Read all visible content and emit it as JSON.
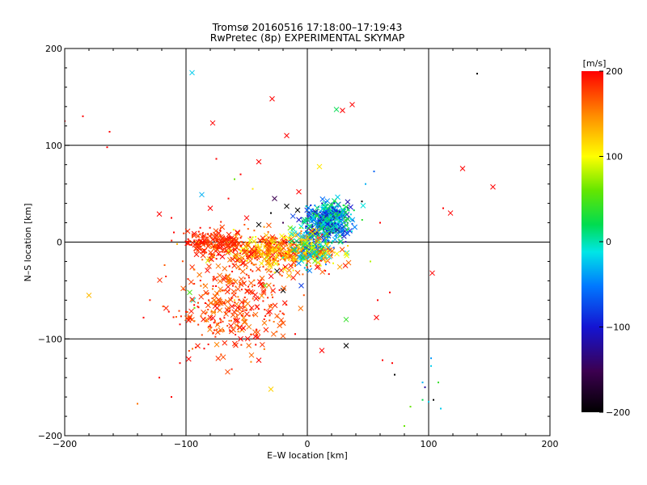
{
  "chart_data": {
    "type": "scatter",
    "title": "Tromsø 20160516 17:18:00–17:19:43",
    "subtitle": "RwPretec (8p) EXPERIMENTAL SKYMAP",
    "xlabel": "E–W location [km]",
    "ylabel": "N–S location [km]",
    "xlim": [
      -200,
      200
    ],
    "ylim": [
      -200,
      200
    ],
    "x_ticks": [
      "-200",
      "-100",
      "0",
      "100",
      "200"
    ],
    "y_ticks": [
      "-200",
      "-100",
      "0",
      "100",
      "200"
    ],
    "grid": true,
    "colorbar": {
      "label": "[m/s]",
      "range": [
        -200,
        200
      ],
      "ticks": [
        "200",
        "100",
        "0",
        "-100",
        "-200"
      ],
      "colormap": "rainbow: black at -200, purple/blue at -100, cyan/green at 0, yellow at 100, red at 200"
    },
    "cluster_summary": [
      {
        "region": "NE of origin, x 0 to 45 km, y -10 to 45 km",
        "dominant_velocity": [
          -120,
          40
        ],
        "colors": "blue, cyan, green"
      },
      {
        "region": "W of origin, x -95 to 10 km, y -30 to 10 km",
        "dominant_velocity": [
          120,
          200
        ],
        "colors": "red, orange, yellow"
      },
      {
        "region": "SW of origin, x -110 to -20 km, y -110 to -40 km",
        "dominant_velocity": [
          150,
          200
        ],
        "colors": "red"
      }
    ],
    "series": [
      {
        "marker": "x",
        "points": [
          [
            -95,
            175,
            -20
          ],
          [
            -29,
            148,
            200
          ],
          [
            -78,
            123,
            200
          ],
          [
            -17,
            110,
            200
          ],
          [
            24,
            137,
            20
          ],
          [
            29,
            136,
            200
          ],
          [
            37,
            142,
            200
          ],
          [
            -40,
            83,
            200
          ],
          [
            -27,
            45,
            -150
          ],
          [
            -87,
            49,
            -30
          ],
          [
            -122,
            29,
            200
          ],
          [
            118,
            30,
            200
          ],
          [
            128,
            76,
            200
          ],
          [
            153,
            57,
            200
          ],
          [
            -180,
            -55,
            130
          ],
          [
            -97,
            -52,
            50
          ],
          [
            -94,
            -60,
            0
          ],
          [
            -40,
            -122,
            200
          ],
          [
            -30,
            -152,
            120
          ],
          [
            32,
            -107,
            -200
          ],
          [
            32,
            -80,
            40
          ],
          [
            57,
            -78,
            200
          ],
          [
            103,
            -32,
            200
          ],
          [
            12,
            -112,
            200
          ],
          [
            -8,
            33,
            -200
          ],
          [
            -7,
            52,
            200
          ],
          [
            -17,
            37,
            -200
          ],
          [
            -40,
            18,
            -200
          ],
          [
            -50,
            25,
            200
          ],
          [
            -80,
            35,
            200
          ],
          [
            -90,
            0,
            200
          ],
          [
            -70,
            -15,
            200
          ],
          [
            -25,
            -30,
            -200
          ],
          [
            -20,
            -50,
            -200
          ],
          [
            -5,
            -45,
            -80
          ],
          [
            -35,
            -45,
            60
          ],
          [
            -55,
            -100,
            200
          ],
          [
            -80,
            -78,
            200
          ],
          [
            10,
            78,
            110
          ]
        ]
      },
      {
        "marker": "dot",
        "points": [
          [
            -163,
            114,
            200
          ],
          [
            -165,
            98,
            200
          ],
          [
            -200,
            125,
            200
          ],
          [
            -185,
            130,
            200
          ],
          [
            140,
            174,
            -200
          ],
          [
            -93,
            -68,
            60
          ],
          [
            -100,
            -72,
            200
          ],
          [
            -40,
            -58,
            200
          ],
          [
            -60,
            -80,
            200
          ],
          [
            -105,
            -85,
            200
          ],
          [
            -85,
            -110,
            200
          ],
          [
            -105,
            -125,
            200
          ],
          [
            -112,
            -160,
            200
          ],
          [
            -122,
            -140,
            200
          ],
          [
            -140,
            -167,
            160
          ],
          [
            -135,
            -78,
            200
          ],
          [
            -110,
            10,
            200
          ],
          [
            -112,
            25,
            200
          ],
          [
            -60,
            65,
            60
          ],
          [
            -45,
            55,
            110
          ],
          [
            -55,
            70,
            200
          ],
          [
            -75,
            86,
            200
          ],
          [
            -85,
            0,
            200
          ],
          [
            -65,
            45,
            200
          ],
          [
            62,
            -122,
            200
          ],
          [
            70,
            -125,
            200
          ],
          [
            72,
            -137,
            -200
          ],
          [
            80,
            -190,
            60
          ],
          [
            85,
            -170,
            60
          ],
          [
            95,
            -163,
            20
          ],
          [
            95,
            -145,
            -30
          ],
          [
            97,
            -150,
            -120
          ],
          [
            100,
            -165,
            -20
          ],
          [
            102,
            -128,
            -20
          ],
          [
            102,
            -120,
            -40
          ],
          [
            104,
            -163,
            -200
          ],
          [
            110,
            -172,
            -20
          ],
          [
            108,
            -145,
            40
          ],
          [
            58,
            -60,
            200
          ],
          [
            68,
            -52,
            200
          ],
          [
            55,
            73,
            -60
          ],
          [
            48,
            60,
            -30
          ],
          [
            52,
            -20,
            80
          ],
          [
            60,
            20,
            200
          ],
          [
            45,
            42,
            -200
          ],
          [
            112,
            35,
            200
          ],
          [
            -5,
            25,
            -100
          ],
          [
            -20,
            20,
            -150
          ],
          [
            -30,
            30,
            -200
          ],
          [
            -50,
            -27,
            150
          ],
          [
            -60,
            -60,
            120
          ],
          [
            -10,
            -95,
            200
          ]
        ]
      }
    ]
  }
}
